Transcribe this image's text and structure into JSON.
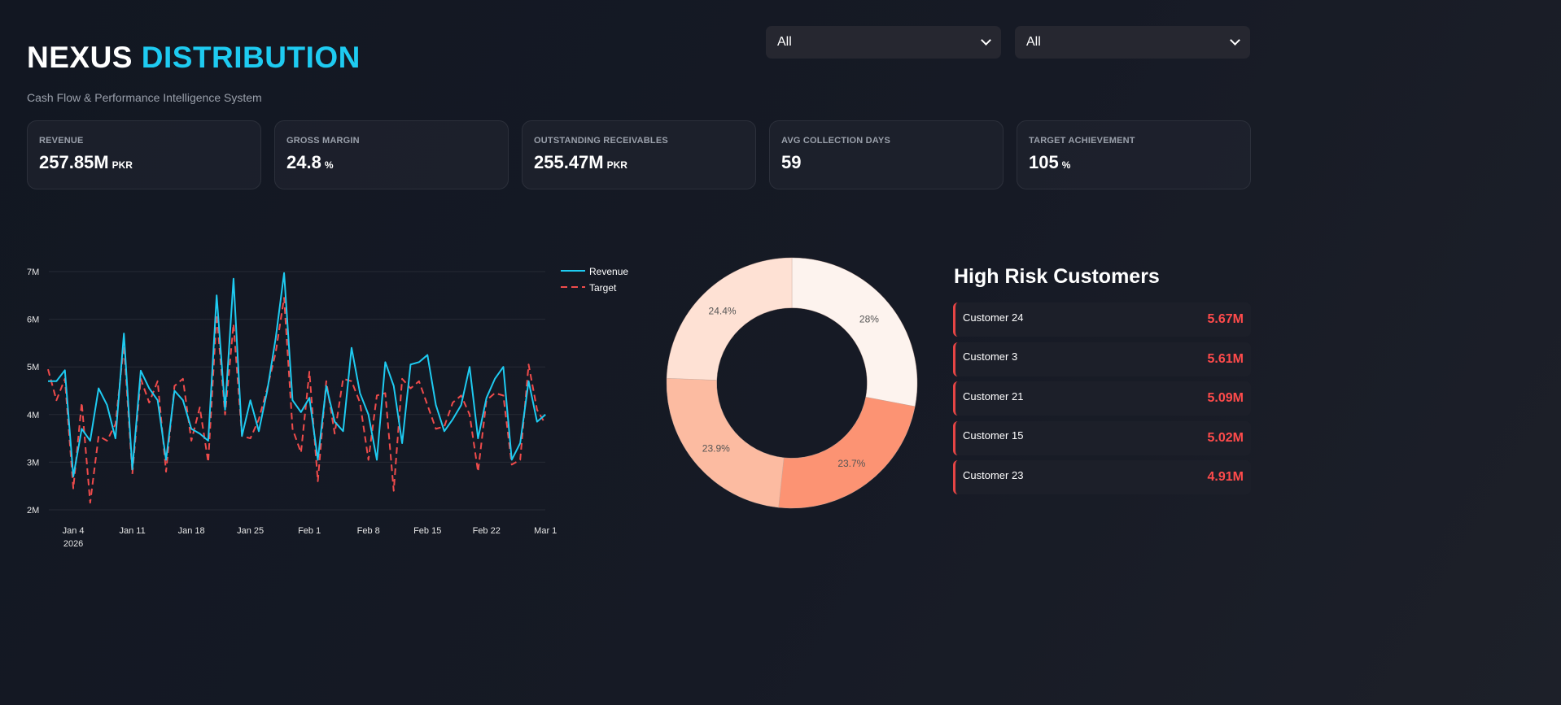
{
  "header": {
    "title_main": "NEXUS",
    "title_accent": "DISTRIBUTION",
    "subtitle": "Cash Flow & Performance Intelligence System"
  },
  "filters": [
    {
      "value": "All"
    },
    {
      "value": "All"
    }
  ],
  "kpis": [
    {
      "label": "REVENUE",
      "value": "257.85M",
      "unit": "PKR"
    },
    {
      "label": "GROSS MARGIN",
      "value": "24.8",
      "unit": "%"
    },
    {
      "label": "OUTSTANDING RECEIVABLES",
      "value": "255.47M",
      "unit": "PKR"
    },
    {
      "label": "AVG COLLECTION DAYS",
      "value": "59",
      "unit": ""
    },
    {
      "label": "TARGET ACHIEVEMENT",
      "value": "105",
      "unit": "%"
    }
  ],
  "colors": {
    "accent": "#1ecbf1",
    "revenue": "#1ecbf1",
    "target": "#ef4b4b",
    "risk": "#ff4b4b"
  },
  "chart_data": [
    {
      "type": "line",
      "x_start": "2026-01-01",
      "x_step": "1 day",
      "ylim": [
        2000000,
        7000000
      ],
      "yticks": [
        "2M",
        "3M",
        "4M",
        "5M",
        "6M",
        "7M"
      ],
      "xticks": [
        "Jan 4",
        "Jan 11",
        "Jan 18",
        "Jan 25",
        "Feb 1",
        "Feb 8",
        "Feb 15",
        "Feb 22",
        "Mar 1"
      ],
      "xtick_sub": "2026",
      "legend": "top-right",
      "grid": true,
      "series": [
        {
          "name": "Revenue",
          "style": "solid",
          "values": [
            4.7,
            4.7,
            4.93,
            2.7,
            3.7,
            3.45,
            4.55,
            4.2,
            3.5,
            5.7,
            2.85,
            4.92,
            4.55,
            4.3,
            3.05,
            4.5,
            4.3,
            3.7,
            3.6,
            3.45,
            6.5,
            4.1,
            6.85,
            3.55,
            4.3,
            3.65,
            4.5,
            5.6,
            6.97,
            4.3,
            4.05,
            4.35,
            3.05,
            4.6,
            3.85,
            3.65,
            5.4,
            4.45,
            4.0,
            3.05,
            5.1,
            4.6,
            3.4,
            5.05,
            5.1,
            5.25,
            4.2,
            3.65,
            3.9,
            4.2,
            5.0,
            3.5,
            4.35,
            4.75,
            5.0,
            3.05,
            3.4,
            4.7,
            3.85,
            4.0
          ]
        },
        {
          "name": "Target",
          "style": "dashed",
          "values": [
            4.95,
            4.3,
            4.75,
            2.45,
            4.25,
            2.15,
            3.55,
            3.45,
            3.8,
            5.45,
            2.75,
            4.75,
            4.25,
            4.7,
            2.8,
            4.6,
            4.75,
            3.45,
            4.15,
            3.0,
            6.1,
            4.0,
            5.9,
            3.55,
            3.5,
            3.9,
            4.55,
            5.3,
            6.45,
            3.7,
            3.2,
            4.9,
            2.6,
            4.7,
            3.6,
            4.75,
            4.7,
            4.25,
            3.05,
            4.4,
            4.45,
            2.4,
            4.75,
            4.55,
            4.7,
            4.2,
            3.7,
            3.75,
            4.25,
            4.4,
            4.0,
            2.8,
            4.3,
            4.45,
            4.4,
            2.95,
            3.05,
            5.05,
            4.1,
            3.8
          ]
        }
      ]
    },
    {
      "type": "pie",
      "hole": 0.6,
      "slices": [
        {
          "label": "28%",
          "value": 28,
          "color": "#fdf3ee"
        },
        {
          "label": "23.7%",
          "value": 23.7,
          "color": "#fc9373"
        },
        {
          "label": "23.9%",
          "value": 23.9,
          "color": "#fcbba1"
        },
        {
          "label": "24.4%",
          "value": 24.4,
          "color": "#fee1d4"
        }
      ]
    }
  ],
  "risk": {
    "title": "High Risk Customers",
    "items": [
      {
        "name": "Customer 24",
        "value": "5.67M"
      },
      {
        "name": "Customer 3",
        "value": "5.61M"
      },
      {
        "name": "Customer 21",
        "value": "5.09M"
      },
      {
        "name": "Customer 15",
        "value": "5.02M"
      },
      {
        "name": "Customer 23",
        "value": "4.91M"
      }
    ]
  }
}
